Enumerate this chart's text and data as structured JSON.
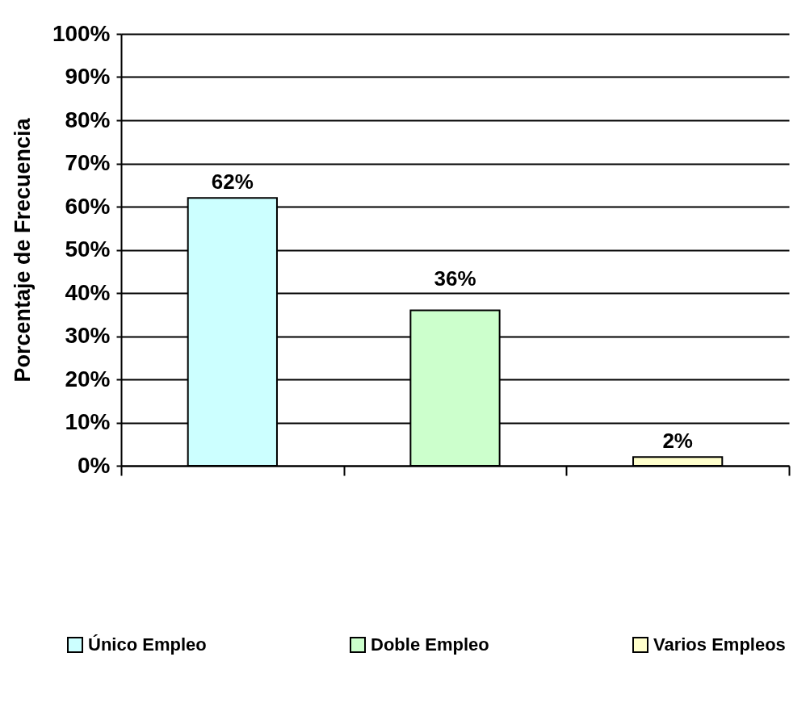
{
  "chart_data": {
    "type": "bar",
    "ylabel": "Porcentaje de Frecuencia",
    "categories": [
      null,
      null,
      null
    ],
    "series": [
      {
        "name": "Único Empleo",
        "color": "#ccffff",
        "values": [
          62,
          null,
          null
        ],
        "value_labels": [
          "62%",
          null,
          null
        ]
      },
      {
        "name": "Doble Empleo",
        "color": "#ccffcc",
        "values": [
          null,
          36,
          null
        ],
        "value_labels": [
          null,
          "36%",
          null
        ]
      },
      {
        "name": "Varios Empleos",
        "color": "#ffffcc",
        "values": [
          null,
          null,
          2
        ],
        "value_labels": [
          null,
          null,
          "2%"
        ]
      }
    ],
    "ylim": [
      0,
      100
    ],
    "yticks": [
      {
        "value": 0,
        "label": "0%"
      },
      {
        "value": 10,
        "label": "10%"
      },
      {
        "value": 20,
        "label": "20%"
      },
      {
        "value": 30,
        "label": "30%"
      },
      {
        "value": 40,
        "label": "40%"
      },
      {
        "value": 50,
        "label": "50%"
      },
      {
        "value": 60,
        "label": "60%"
      },
      {
        "value": 70,
        "label": "70%"
      },
      {
        "value": 80,
        "label": "80%"
      },
      {
        "value": 90,
        "label": "90%"
      },
      {
        "value": 100,
        "label": "100%"
      }
    ],
    "grid": "y",
    "legend": "bottom",
    "tick_labels": "y"
  }
}
